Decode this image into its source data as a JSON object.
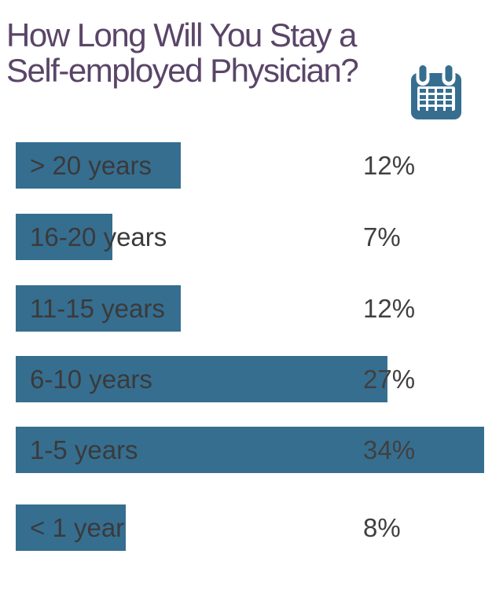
{
  "title": {
    "line1": "How Long Will You Stay a",
    "line2": "Self-employed Physician?"
  },
  "icon": "calendar-icon",
  "colors": {
    "background": "#ffffff",
    "title": "#5a4568",
    "bar": "#366e90",
    "label": "#3a3a3a",
    "value": "#404040"
  },
  "chart_data": {
    "type": "bar",
    "orientation": "horizontal",
    "title": "How Long Will You Stay a Self-employed Physician?",
    "categories": [
      "> 20 years",
      "16-20 years",
      "11-15 years",
      "6-10 years",
      "1-5 years",
      "< 1 year"
    ],
    "values": [
      12,
      7,
      12,
      27,
      34,
      8
    ],
    "value_labels": [
      "12%",
      "7%",
      "12%",
      "27%",
      "34%",
      "8%"
    ],
    "unit": "%",
    "xlim": [
      0,
      34
    ],
    "grid": false,
    "legend": false,
    "bar_color": "#366e90",
    "value_label_position": "fixed-right-column"
  }
}
